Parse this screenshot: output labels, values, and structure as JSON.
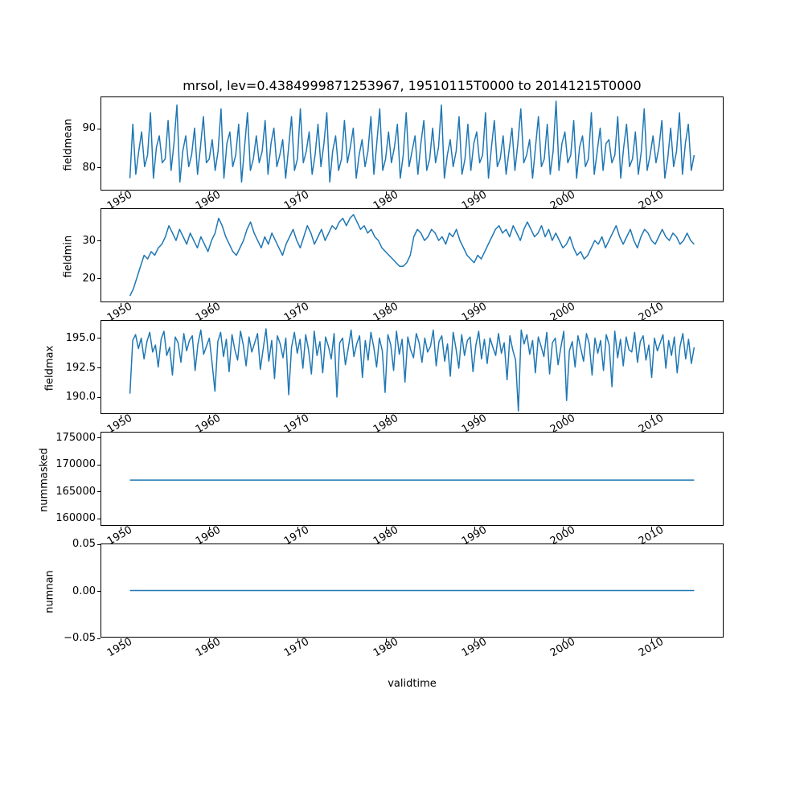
{
  "figure": {
    "title": "mrsol, lev=0.4384999871253967, 19510115T0000 to 20141215T0000",
    "line_color": "#1f77b4",
    "background": "#ffffff",
    "text_color": "#000000"
  },
  "chart_data": {
    "type": "line",
    "title": "mrsol, lev=0.4384999871253967, 19510115T0000 to 20141215T0000",
    "xlabel": "validtime",
    "grid": false,
    "legend": "none",
    "xlim": [
      1947.8,
      2018.2
    ],
    "x_range": [
      1951.04,
      2014.96
    ],
    "xticks": [
      1950,
      1960,
      1970,
      1980,
      1990,
      2000,
      2010
    ],
    "xtick_labels": [
      "1950",
      "1960",
      "1970",
      "1980",
      "1990",
      "2000",
      "2010"
    ],
    "subplots": [
      {
        "name": "fieldmean",
        "ylabel": "fieldmean",
        "ylim": [
          74,
          98
        ],
        "yticks": [
          80,
          90
        ],
        "ytick_labels": [
          "80",
          "90"
        ],
        "values": [
          77,
          91,
          78,
          84,
          89,
          80,
          83,
          94,
          77,
          85,
          88,
          81,
          82,
          92,
          79,
          86,
          96,
          76,
          84,
          88,
          80,
          83,
          90,
          78,
          85,
          93,
          81,
          82,
          87,
          79,
          84,
          95,
          77,
          86,
          89,
          80,
          83,
          91,
          76,
          85,
          94,
          79,
          82,
          88,
          81,
          84,
          92,
          78,
          86,
          90,
          80,
          83,
          87,
          77,
          85,
          93,
          79,
          82,
          95,
          81,
          84,
          89,
          78,
          83,
          91,
          80,
          86,
          94,
          76,
          84,
          88,
          79,
          82,
          92,
          81,
          85,
          90,
          77,
          83,
          87,
          80,
          84,
          93,
          78,
          86,
          95,
          79,
          82,
          89,
          81,
          85,
          91,
          77,
          83,
          94,
          80,
          84,
          88,
          78,
          86,
          92,
          79,
          82,
          90,
          81,
          85,
          96,
          77,
          83,
          87,
          80,
          84,
          93,
          78,
          82,
          91,
          79,
          86,
          89,
          81,
          83,
          94,
          77,
          85,
          92,
          80,
          82,
          88,
          78,
          84,
          90,
          79,
          86,
          95,
          81,
          83,
          87,
          77,
          85,
          93,
          80,
          82,
          91,
          78,
          84,
          97,
          79,
          86,
          89,
          81,
          83,
          92,
          77,
          85,
          88,
          80,
          82,
          94,
          78,
          84,
          90,
          79,
          86,
          87,
          81,
          83,
          93,
          77,
          85,
          91,
          80,
          82,
          89,
          78,
          84,
          95,
          79,
          83,
          88,
          81,
          85,
          92,
          77,
          82,
          90,
          80,
          84,
          94,
          78,
          86,
          91,
          79,
          83
        ]
      },
      {
        "name": "fieldmin",
        "ylabel": "fieldmin",
        "ylim": [
          13.5,
          38.5
        ],
        "yticks": [
          20,
          30
        ],
        "ytick_labels": [
          "20",
          "30"
        ],
        "values": [
          15,
          17,
          20,
          23,
          26,
          25,
          27,
          26,
          28,
          29,
          31,
          34,
          32,
          30,
          33,
          31,
          29,
          32,
          30,
          28,
          31,
          29,
          27,
          30,
          32,
          36,
          34,
          31,
          29,
          27,
          26,
          28,
          30,
          33,
          35,
          32,
          30,
          28,
          31,
          29,
          32,
          30,
          28,
          26,
          29,
          31,
          33,
          30,
          28,
          31,
          34,
          32,
          29,
          31,
          33,
          30,
          32,
          34,
          33,
          35,
          36,
          34,
          36,
          37,
          35,
          33,
          34,
          32,
          33,
          31,
          30,
          28,
          27,
          26,
          25,
          24,
          23,
          23,
          24,
          26,
          31,
          33,
          32,
          30,
          31,
          33,
          32,
          30,
          31,
          29,
          32,
          31,
          33,
          30,
          28,
          26,
          25,
          24,
          26,
          25,
          27,
          29,
          31,
          33,
          34,
          32,
          33,
          31,
          34,
          32,
          30,
          33,
          35,
          33,
          31,
          32,
          34,
          31,
          33,
          30,
          32,
          30,
          28,
          29,
          31,
          28,
          26,
          27,
          25,
          26,
          28,
          30,
          29,
          31,
          28,
          30,
          32,
          34,
          31,
          29,
          31,
          33,
          30,
          28,
          31,
          33,
          32,
          30,
          29,
          31,
          33,
          31,
          30,
          32,
          31,
          29,
          30,
          32,
          30,
          29
        ]
      },
      {
        "name": "fieldmax",
        "ylabel": "fieldmax",
        "ylim": [
          188.5,
          196.5
        ],
        "yticks": [
          190.0,
          192.5,
          195.0
        ],
        "ytick_labels": [
          "190.0",
          "192.5",
          "195.0"
        ],
        "values": [
          190.2,
          194.8,
          195.3,
          194.1,
          195.0,
          193.2,
          194.7,
          195.5,
          193.8,
          194.4,
          192.5,
          194.9,
          195.6,
          193.5,
          194.2,
          191.8,
          195.1,
          194.6,
          192.9,
          195.4,
          193.9,
          194.8,
          195.2,
          192.2,
          194.5,
          195.7,
          193.6,
          194.3,
          195.0,
          192.8,
          190.4,
          194.7,
          195.5,
          193.4,
          194.9,
          192.1,
          195.3,
          194.0,
          193.1,
          195.6,
          194.4,
          192.6,
          195.1,
          193.8,
          194.6,
          195.4,
          192.3,
          194.1,
          195.8,
          193.0,
          194.8,
          191.5,
          195.2,
          194.5,
          193.3,
          195.0,
          190.1,
          194.2,
          195.5,
          193.7,
          194.9,
          192.4,
          195.3,
          194.0,
          191.9,
          195.6,
          193.5,
          194.7,
          192.0,
          195.1,
          194.3,
          193.2,
          195.4,
          189.9,
          194.6,
          195.0,
          192.7,
          194.1,
          195.7,
          193.4,
          194.5,
          195.2,
          191.6,
          194.8,
          193.1,
          195.5,
          194.2,
          192.5,
          195.0,
          193.9,
          190.3,
          195.3,
          194.4,
          192.2,
          195.6,
          193.6,
          194.9,
          191.2,
          195.1,
          194.0,
          193.3,
          195.4,
          194.6,
          192.9,
          195.0,
          193.8,
          194.3,
          195.7,
          192.6,
          194.7,
          195.2,
          193.0,
          194.5,
          191.7,
          195.5,
          194.1,
          192.4,
          195.3,
          193.5,
          194.8,
          195.1,
          192.1,
          194.4,
          195.6,
          193.2,
          194.9,
          192.8,
          195.0,
          194.2,
          193.5,
          195.4,
          193.7,
          194.6,
          191.4,
          195.2,
          194.0,
          193.1,
          188.7,
          195.7,
          194.5,
          195.3,
          193.6,
          194.8,
          192.0,
          195.1,
          194.3,
          193.4,
          195.5,
          191.9,
          194.6,
          195.0,
          192.7,
          194.2,
          195.6,
          189.6,
          193.9,
          194.7,
          192.5,
          195.2,
          194.1,
          193.0,
          195.4,
          194.5,
          191.8,
          195.0,
          193.7,
          194.8,
          192.2,
          195.3,
          194.4,
          190.8,
          195.6,
          193.3,
          194.9,
          192.6,
          195.1,
          194.0,
          193.8,
          195.5,
          192.9,
          194.7,
          195.2,
          193.1,
          194.4,
          191.6,
          195.0,
          193.9,
          194.6,
          195.3,
          192.4,
          194.8,
          193.5,
          195.1,
          192.0,
          194.3,
          195.4,
          193.2,
          194.9,
          192.8,
          194.2
        ]
      },
      {
        "name": "nummasked",
        "ylabel": "nummasked",
        "ylim": [
          158500,
          176000
        ],
        "yticks": [
          160000,
          165000,
          170000,
          175000
        ],
        "ytick_labels": [
          "160000",
          "165000",
          "170000",
          "175000"
        ],
        "values": [
          167000,
          167000
        ]
      },
      {
        "name": "numnan",
        "ylabel": "numnan",
        "ylim": [
          -0.05,
          0.05
        ],
        "yticks": [
          -0.05,
          0.0,
          0.05
        ],
        "ytick_labels": [
          "−0.05",
          "0.00",
          "0.05"
        ],
        "values": [
          0,
          0
        ]
      }
    ]
  }
}
